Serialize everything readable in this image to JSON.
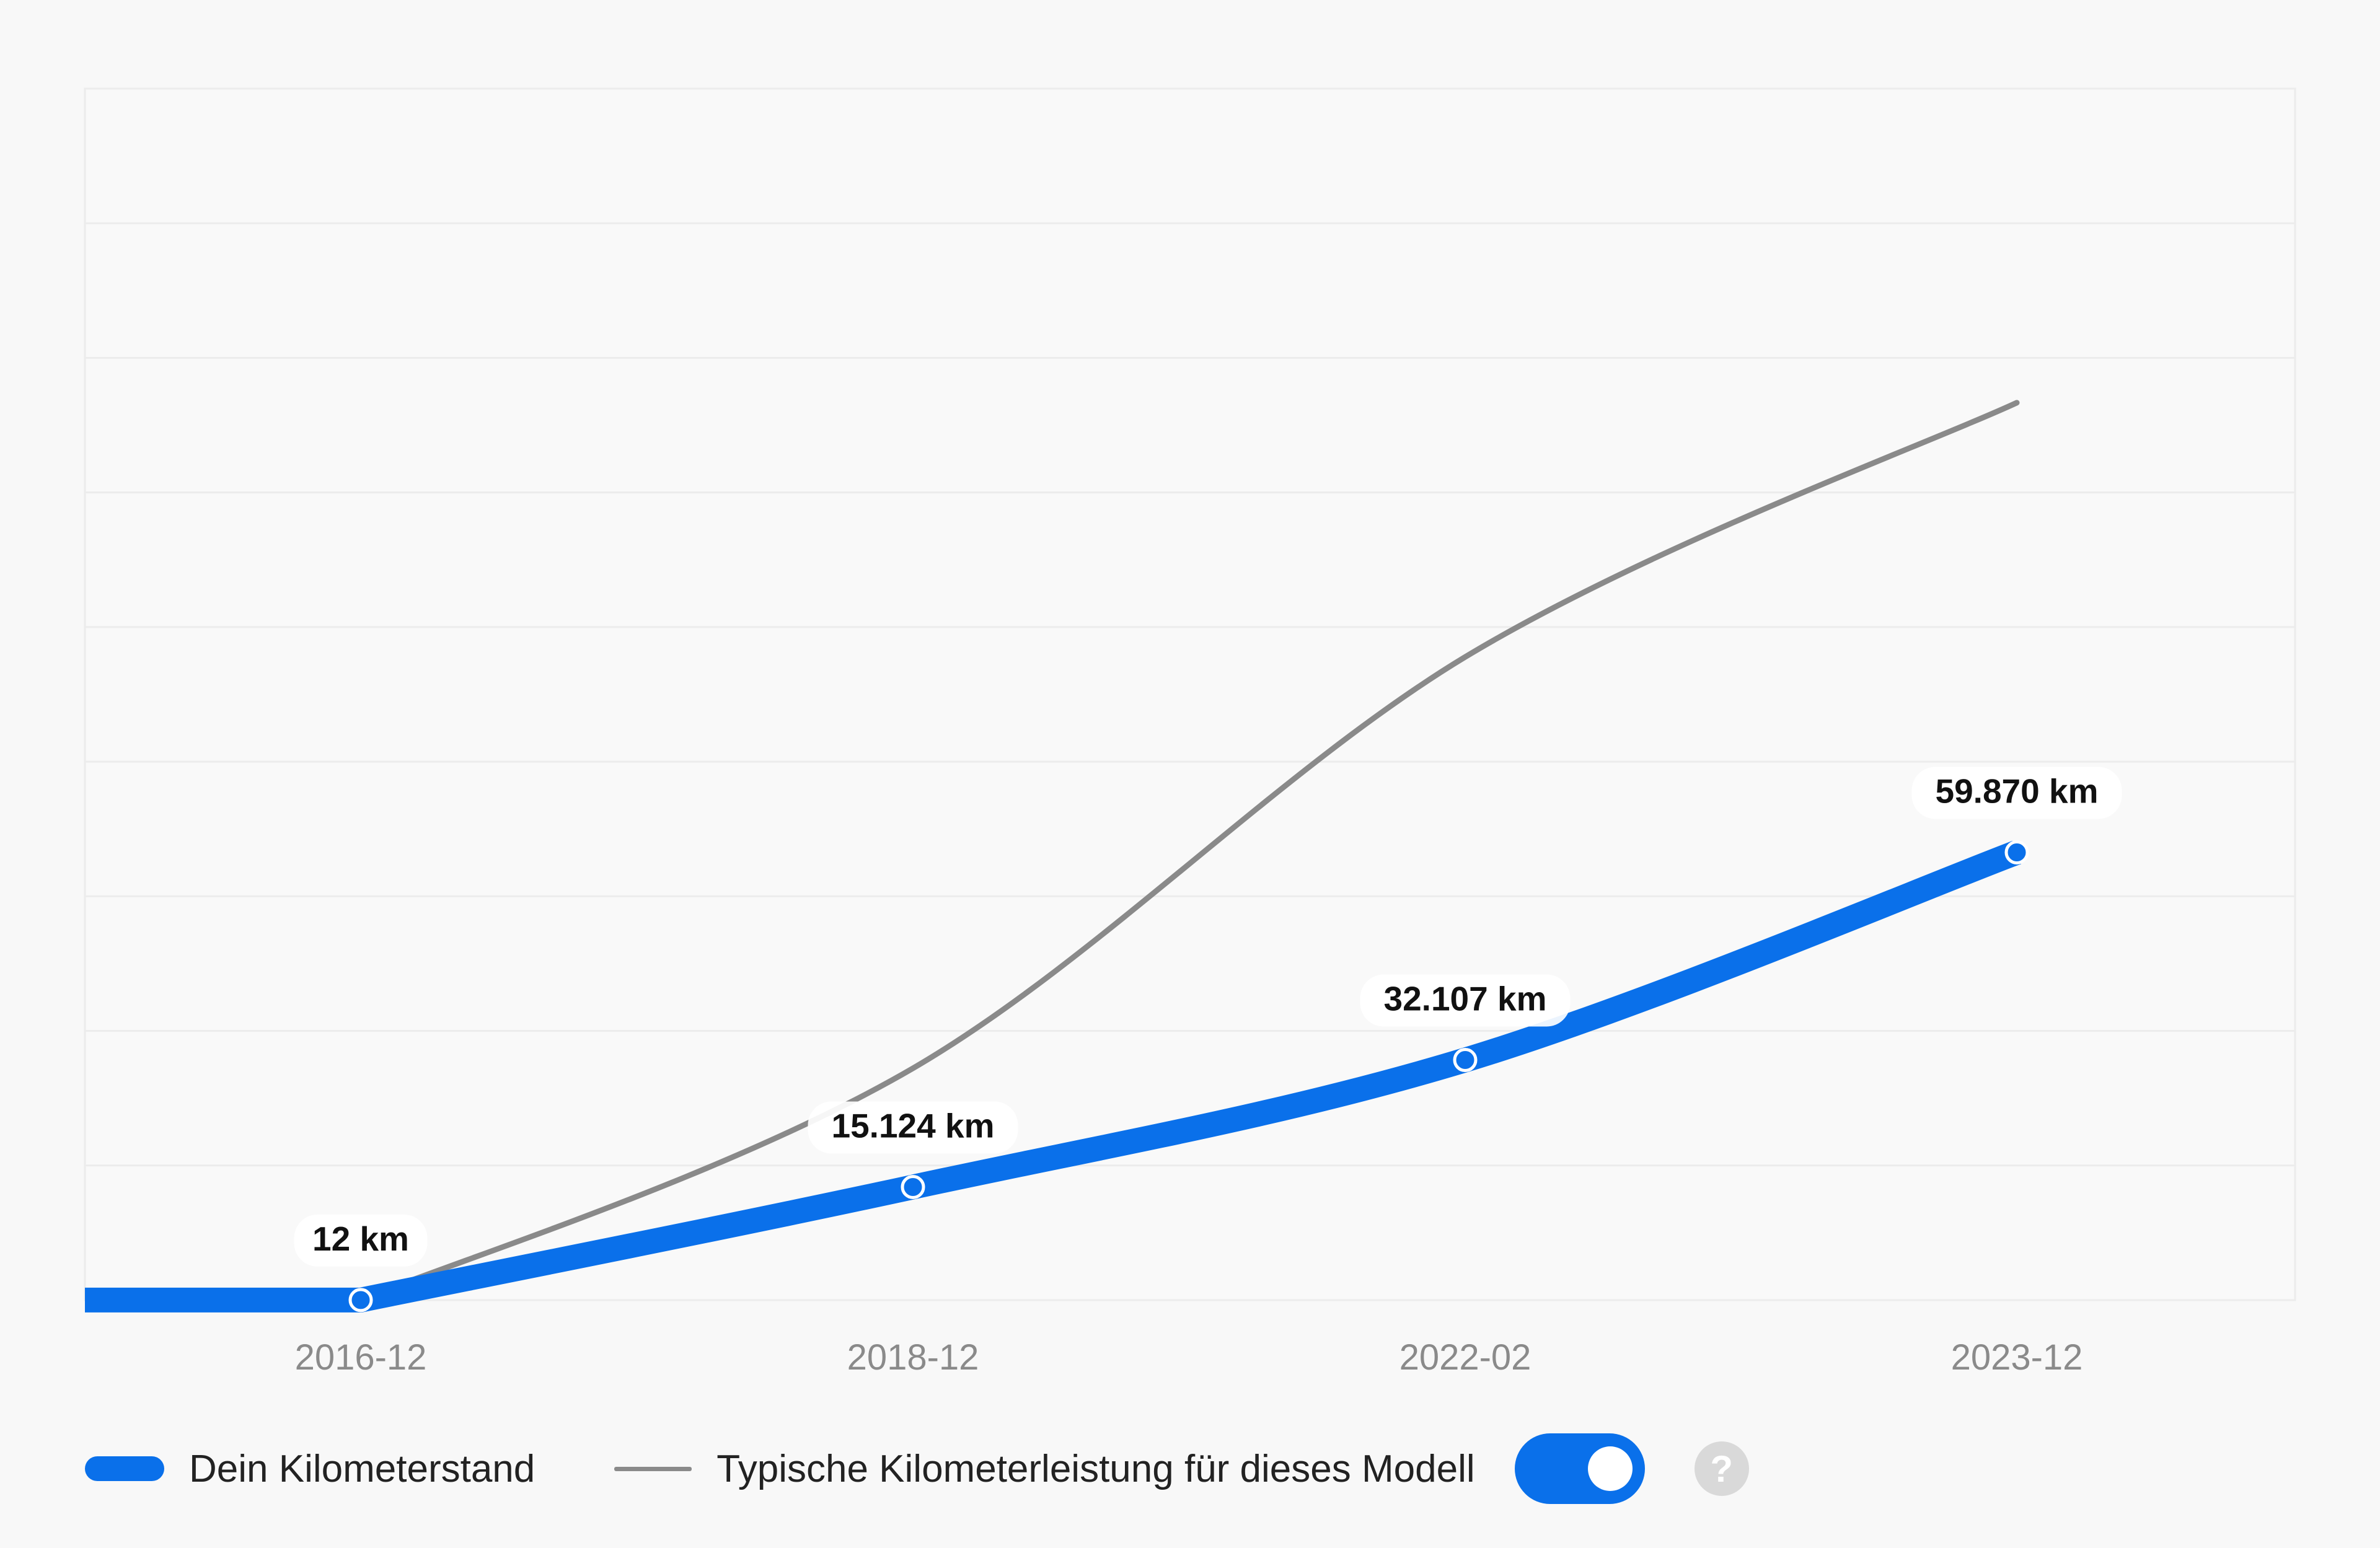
{
  "chart_data": {
    "type": "line",
    "x": [
      "2016-12",
      "2018-12",
      "2022-02",
      "2023-12"
    ],
    "series": [
      {
        "name": "Dein Kilometerstand",
        "values": [
          12,
          15124,
          32107,
          59870
        ],
        "labels": [
          "12 km",
          "15.124 km",
          "32.107 km",
          "59.870 km"
        ],
        "color": "#0a70ea"
      },
      {
        "name": "Typische Kilometerleistung für dieses Modell",
        "values": [
          12,
          31000,
          86000,
          120000
        ],
        "color": "#8a8a8a"
      }
    ],
    "ylim": [
      0,
      162000
    ],
    "grid": true,
    "legend_position": "bottom-left",
    "y_tick_labels_shown": false
  },
  "legend": {
    "mine_label": "Dein Kilometerstand",
    "typical_label": "Typische Kilometerleistung für dieses Modell",
    "typical_toggle_on": true,
    "help_icon": "?"
  }
}
